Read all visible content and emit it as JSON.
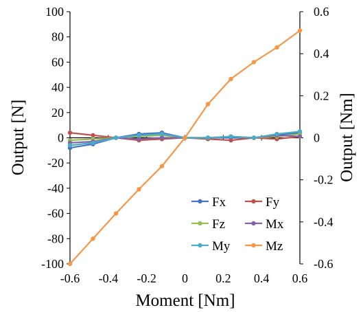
{
  "chart_data": {
    "type": "line",
    "xlabel": "Moment [Nm]",
    "ylabel_left": "Output [N]",
    "ylabel_right": "Output [Nm]",
    "xlim": [
      -0.6,
      0.6
    ],
    "ylim_left": [
      -100,
      100
    ],
    "ylim_right": [
      -0.6,
      0.6
    ],
    "x_ticks": [
      "-0.6",
      "-0.4",
      "-0.2",
      "0",
      "0.2",
      "0.4",
      "0.6"
    ],
    "y_left_ticks": [
      "100",
      "80",
      "60",
      "40",
      "20",
      "0",
      "-20",
      "-40",
      "-60",
      "-80",
      "-100"
    ],
    "y_right_ticks": [
      "0.6",
      "0.4",
      "0.2",
      "0",
      "-0.2",
      "-0.4",
      "-0.6"
    ],
    "grid": false,
    "legend_position": "bottom-right",
    "x": [
      -0.6,
      -0.48,
      -0.36,
      -0.24,
      -0.12,
      0,
      0.12,
      0.24,
      0.36,
      0.48,
      0.6
    ],
    "series": [
      {
        "name": "Fx",
        "axis": "left",
        "color": "#4472c4",
        "values": [
          -8,
          -5,
          0,
          3,
          4,
          0,
          0,
          0,
          0,
          2,
          4
        ]
      },
      {
        "name": "Fy",
        "axis": "left",
        "color": "#c0504d",
        "values": [
          4,
          2,
          0,
          -2,
          -1,
          0,
          -1,
          -2,
          0,
          -1,
          1
        ]
      },
      {
        "name": "Fz",
        "axis": "left",
        "color": "#9bbb59",
        "values": [
          -2,
          -1,
          0,
          1,
          2,
          0,
          0,
          1,
          0,
          1,
          3
        ]
      },
      {
        "name": "Mx",
        "axis": "left",
        "color": "#8064a2",
        "values": [
          -4,
          -3,
          0,
          -1,
          0,
          0,
          0,
          1,
          0,
          2,
          1
        ]
      },
      {
        "name": "My",
        "axis": "left",
        "color": "#4bacc6",
        "values": [
          -6,
          -4,
          0,
          2,
          3,
          0,
          0,
          1,
          0,
          3,
          5
        ]
      },
      {
        "name": "Mz",
        "axis": "right",
        "color": "#f79646",
        "values": [
          -0.6,
          -0.48,
          -0.36,
          -0.245,
          -0.135,
          0,
          0.16,
          0.28,
          0.36,
          0.43,
          0.51
        ]
      }
    ]
  }
}
